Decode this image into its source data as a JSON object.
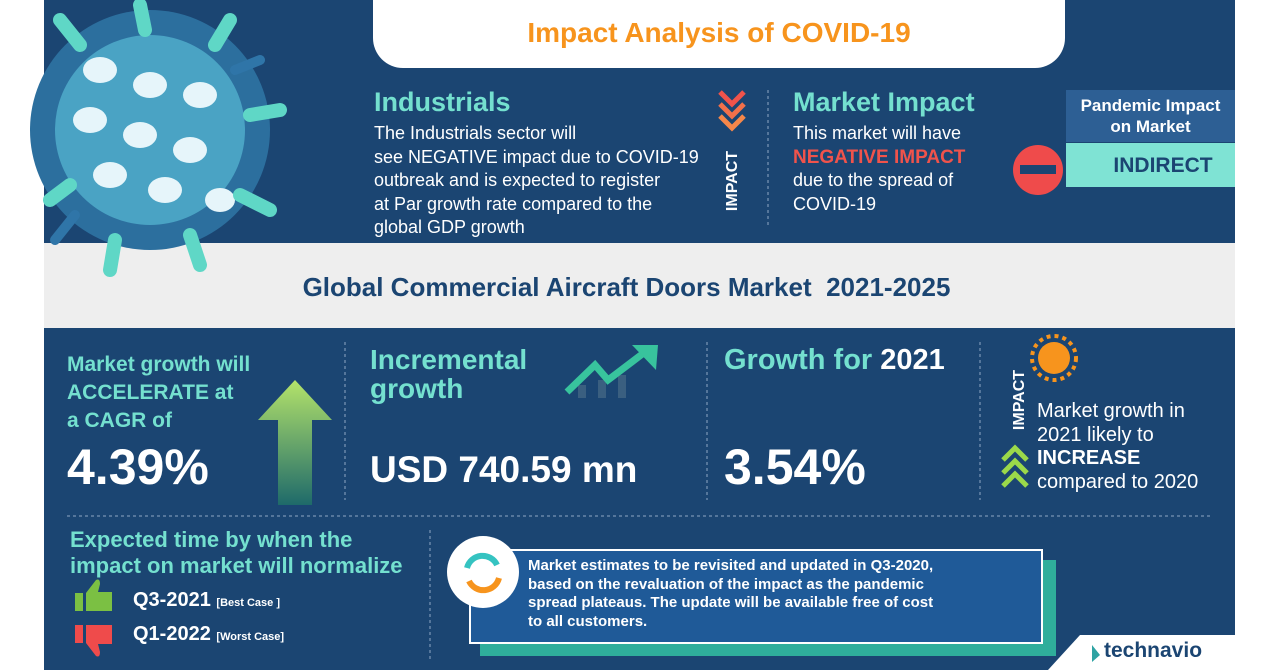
{
  "header": {
    "title": "Impact Analysis of COVID-19"
  },
  "industry": {
    "heading": "Industrials",
    "lines": [
      "The Industrials sector will",
      "see NEGATIVE impact due to COVID-19",
      "outbreak and is expected to register",
      "at Par growth rate compared to the",
      "global GDP growth"
    ],
    "side_label": "IMPACT"
  },
  "market_impact": {
    "heading": "Market Impact",
    "line": "This market will have",
    "emphasis": "NEGATIVE IMPACT",
    "lines": [
      "due to the spread of",
      "COVID-19"
    ]
  },
  "pandemic": {
    "label_lines": [
      "Pandemic Impact",
      "on Market"
    ],
    "value": "INDIRECT"
  },
  "market_title": {
    "name": "Global Commercial Aircraft Doors Market",
    "years": "2021-2025"
  },
  "kpis": {
    "cagr": {
      "lines": [
        "Market growth will",
        "ACCELERATE at",
        "a CAGR of"
      ],
      "value": "4.39%"
    },
    "incremental": {
      "lines": [
        "Incremental",
        "growth"
      ],
      "value": "USD 740.59 mn"
    },
    "growth": {
      "label": "Growth for",
      "year": "2021",
      "value": "3.54%"
    },
    "outlook": {
      "side_label": "IMPACT",
      "lines": [
        "Market growth in",
        "2021 likely to"
      ],
      "emphasis": "INCREASE",
      "last": "compared to 2020"
    }
  },
  "normalize": {
    "heading_lines": [
      "Expected time by when the",
      "impact on market will normalize"
    ],
    "best": {
      "period": "Q3-2021",
      "note": "[Best Case ]"
    },
    "worst": {
      "period": "Q1-2022",
      "note": "[Worst Case]"
    }
  },
  "note": {
    "lines": [
      "Market estimates to be revisited and updated in Q3-2020,",
      "based on the revaluation of the impact as the pandemic",
      "spread plateaus. The update will be available free of cost",
      "to all customers."
    ]
  },
  "brand": "technavio"
}
